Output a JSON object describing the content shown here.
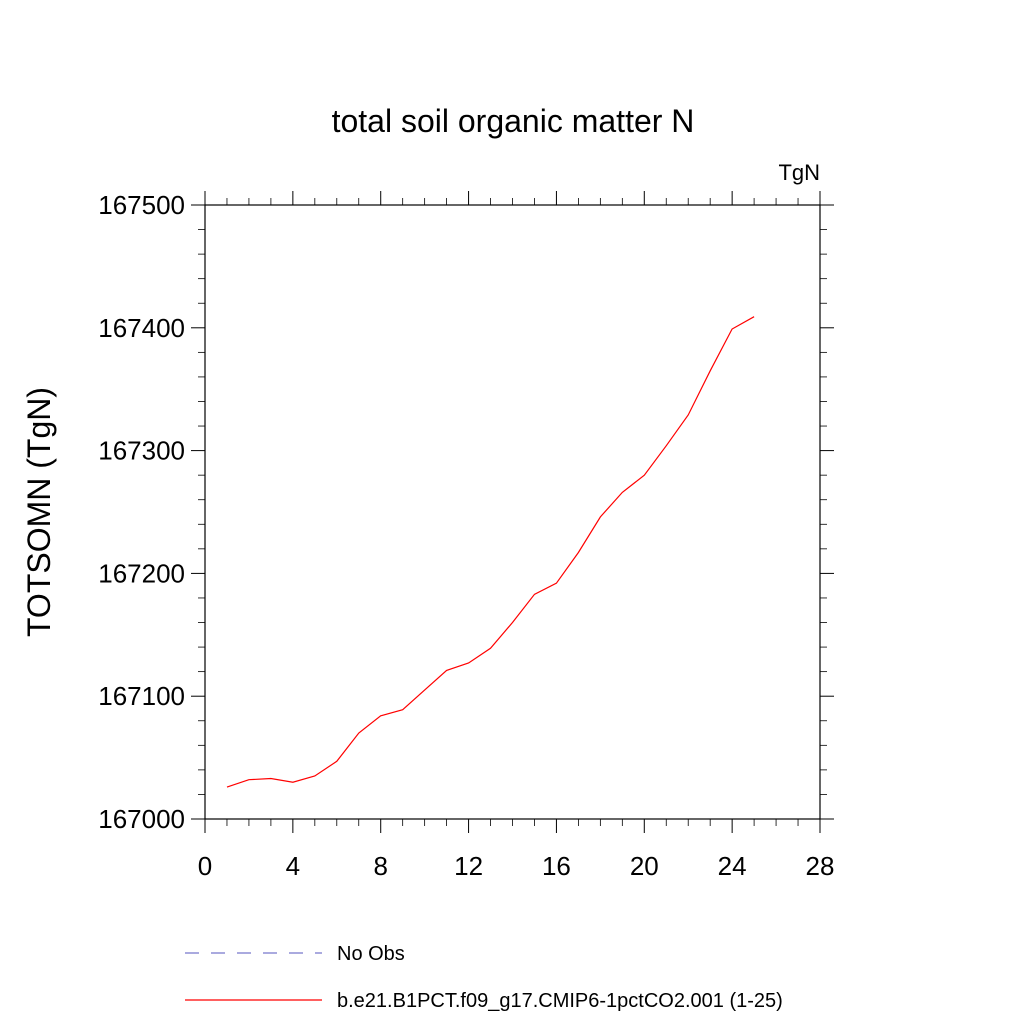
{
  "chart_data": {
    "type": "line",
    "title": "total soil organic matter N",
    "units_label": "TgN",
    "xlabel": "",
    "ylabel": "TOTSOMN  (TgN)",
    "xlim": [
      0,
      28
    ],
    "ylim": [
      167000,
      167500
    ],
    "x_ticks": [
      0,
      4,
      8,
      12,
      16,
      20,
      24,
      28
    ],
    "y_ticks": [
      167000,
      167100,
      167200,
      167300,
      167400,
      167500
    ],
    "x_tick_labels": [
      "0",
      "4",
      "8",
      "12",
      "16",
      "20",
      "24",
      "28"
    ],
    "y_tick_labels": [
      "167000",
      "167100",
      "167200",
      "167300",
      "167400",
      "167500"
    ],
    "grid": false,
    "legend_position": "bottom",
    "series": [
      {
        "name": "b.e21.B1PCT.f09_g17.CMIP6-1pctCO2.001 (1-25)",
        "color": "#ff0000",
        "style": "solid",
        "x": [
          1,
          2,
          3,
          4,
          5,
          6,
          7,
          8,
          9,
          10,
          11,
          12,
          13,
          14,
          15,
          16,
          17,
          18,
          19,
          20,
          21,
          22,
          23,
          24,
          25
        ],
        "y": [
          167026,
          167032,
          167033,
          167030,
          167035,
          167047,
          167070,
          167084,
          167089,
          167105,
          167121,
          167127,
          167139,
          167160,
          167183,
          167192,
          167217,
          167246,
          167266,
          167280,
          167304,
          167329,
          167365,
          167399,
          167409
        ]
      },
      {
        "name": "No Obs",
        "color": "#7777cc",
        "style": "dashed",
        "x": [],
        "y": []
      }
    ]
  }
}
